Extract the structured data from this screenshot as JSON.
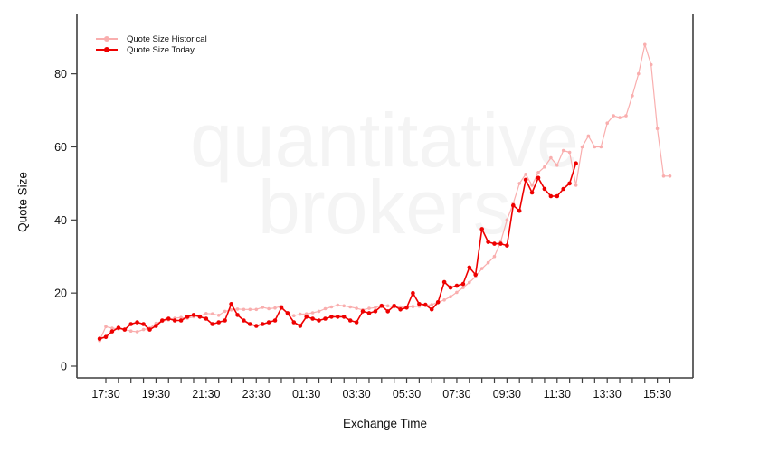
{
  "chart_data": {
    "type": "line",
    "title": "",
    "xlabel": "Exchange Time",
    "ylabel": "Quote Size",
    "legend_position": "top-left",
    "grid": false,
    "box_style": "left-bottom-right (no top border)",
    "watermark": {
      "line1": "quantitative",
      "line2": "brokers"
    },
    "x_axis": {
      "unit": "hours (values > 24 are next calendar day)",
      "minor_tick_start": 17.5,
      "minor_tick_end": 40.0,
      "minor_tick_step": 0.5,
      "label_times": [
        17.5,
        19.5,
        21.5,
        23.5,
        25.5,
        27.5,
        29.5,
        31.5,
        33.5,
        35.5,
        37.5,
        39.5
      ],
      "labels": [
        "17:30",
        "19:30",
        "21:30",
        "23:30",
        "01:30",
        "03:30",
        "05:30",
        "07:30",
        "09:30",
        "11:30",
        "13:30",
        "15:30"
      ]
    },
    "y_axis": {
      "ticks": [
        0,
        20,
        40,
        60,
        80
      ],
      "tick_labels": [
        "0",
        "20",
        "40",
        "60",
        "80"
      ],
      "range_shown": [
        -3,
        96
      ]
    },
    "sample_start_hour": 17.25,
    "sample_step_hours": 0.25,
    "series": [
      {
        "name": "Quote Size Historical",
        "color": "#F9AEAE",
        "values": [
          7,
          10.8,
          10.4,
          10.2,
          10,
          9.6,
          9.4,
          10,
          10.4,
          11.7,
          12.3,
          12.7,
          13.1,
          13.3,
          13.1,
          13.5,
          13.7,
          14.4,
          14.3,
          13.9,
          15,
          15.4,
          15.6,
          15.5,
          15.5,
          15.5,
          16.1,
          15.7,
          15.9,
          16.4,
          14.2,
          13.8,
          14.2,
          14.3,
          14.6,
          15,
          15.7,
          16.2,
          16.7,
          16.5,
          16.2,
          15.8,
          15.4,
          15.8,
          16,
          16.7,
          16.5,
          16.2,
          16.2,
          16.1,
          16.3,
          16.4,
          16.6,
          16.8,
          17.5,
          18.1,
          19,
          20.2,
          21.5,
          22.9,
          24.5,
          26.7,
          28.3,
          30,
          34,
          40,
          44.5,
          50,
          52.5,
          49.5,
          53,
          54.5,
          57,
          55,
          59,
          58.5,
          49.5,
          60,
          63,
          60,
          60,
          66.5,
          68.5,
          68,
          68.5,
          74,
          80,
          88,
          82.5,
          65,
          52,
          52
        ]
      },
      {
        "name": "Quote Size Today",
        "color": "#EE0000",
        "values": [
          7.5,
          8,
          9.5,
          10.5,
          10,
          11.5,
          12,
          11.5,
          10,
          11,
          12.5,
          13,
          12.5,
          12.5,
          13.5,
          14,
          13.5,
          13,
          11.5,
          12,
          12.5,
          17,
          14,
          12.5,
          11.5,
          11,
          11.5,
          12,
          12.5,
          16,
          14.5,
          12,
          11,
          13.5,
          13,
          12.5,
          13,
          13.5,
          13.5,
          13.5,
          12.5,
          12,
          15,
          14.5,
          15,
          16.5,
          15,
          16.5,
          15.5,
          16,
          20,
          17,
          16.8,
          15.5,
          17.5,
          23,
          21.5,
          22,
          22.5,
          27,
          25,
          37.5,
          34,
          33.5,
          33.5,
          33,
          44,
          42.5,
          51,
          47.5,
          51.5,
          48.5,
          46.5,
          46.5,
          48.5,
          50,
          55.5
        ]
      }
    ]
  }
}
